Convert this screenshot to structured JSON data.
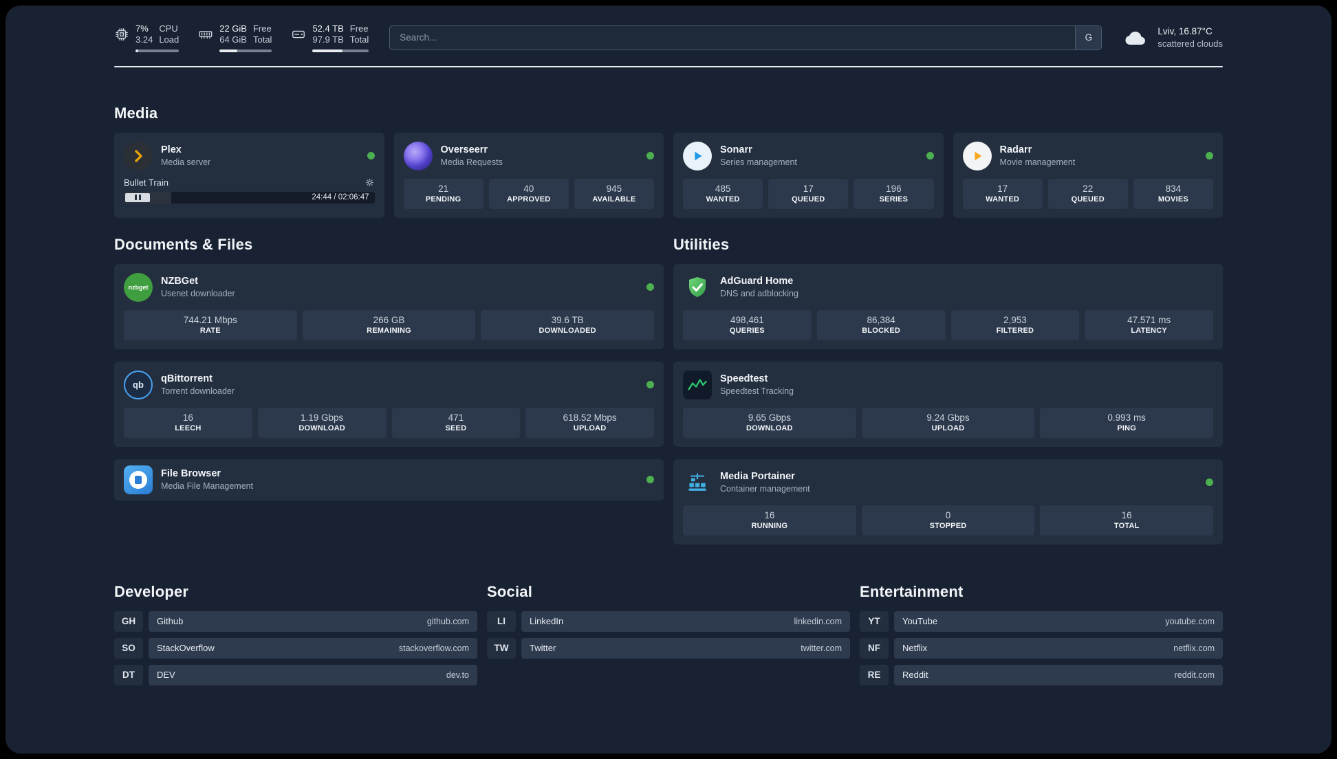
{
  "colors": {
    "status_online": "#4caf50",
    "plex_accent": "#e5a00d",
    "sonarr_accent": "#1e9be6",
    "radarr_accent": "#f6a821",
    "adguard_accent": "#44ad4c",
    "speedtest_accent": "#2ecc71",
    "portainer_accent": "#41b0e5"
  },
  "icons": [
    "cpu-chip",
    "ram-module",
    "disk-drive",
    "search-engine-g",
    "weather-cloud",
    "gear",
    "pause",
    "status-dot"
  ],
  "topbar": {
    "cpu": {
      "value": "7%",
      "sub": "3.24",
      "label_top": "CPU",
      "label_bottom": "Load",
      "bar_width": "7%"
    },
    "ram": {
      "value": "22 GiB",
      "sub": "64 GiB",
      "label_top": "Free",
      "label_bottom": "Total",
      "bar_width": "34%"
    },
    "disk": {
      "value": "52.4 TB",
      "sub": "97.9 TB",
      "label_top": "Free",
      "label_bottom": "Total",
      "bar_width": "53%"
    },
    "search": {
      "placeholder": "Search...",
      "button_label": "G"
    },
    "weather": {
      "location": "Lviv, 16.87°C",
      "condition": "scattered clouds"
    }
  },
  "media": {
    "title": "Media",
    "cards": {
      "plex": {
        "name": "Plex",
        "subtitle": "Media server",
        "player": {
          "track_title": "Bullet Train",
          "time": "24:44 / 02:06:47",
          "progress": "19%"
        }
      },
      "overseerr": {
        "name": "Overseerr",
        "subtitle": "Media Requests",
        "stats": [
          {
            "value": "21",
            "label": "PENDING"
          },
          {
            "value": "40",
            "label": "APPROVED"
          },
          {
            "value": "945",
            "label": "AVAILABLE"
          }
        ]
      },
      "sonarr": {
        "name": "Sonarr",
        "subtitle": "Series management",
        "stats": [
          {
            "value": "485",
            "label": "WANTED"
          },
          {
            "value": "17",
            "label": "QUEUED"
          },
          {
            "value": "196",
            "label": "SERIES"
          }
        ]
      },
      "radarr": {
        "name": "Radarr",
        "subtitle": "Movie management",
        "stats": [
          {
            "value": "17",
            "label": "WANTED"
          },
          {
            "value": "22",
            "label": "QUEUED"
          },
          {
            "value": "834",
            "label": "MOVIES"
          }
        ]
      }
    }
  },
  "documents": {
    "title": "Documents & Files",
    "nzbget": {
      "name": "NZBGet",
      "subtitle": "Usenet downloader",
      "icon_text": "nzbget",
      "stats": [
        {
          "value": "744.21 Mbps",
          "label": "RATE"
        },
        {
          "value": "266 GB",
          "label": "REMAINING"
        },
        {
          "value": "39.6 TB",
          "label": "DOWNLOADED"
        }
      ]
    },
    "qbittorrent": {
      "name": "qBittorrent",
      "subtitle": "Torrent downloader",
      "icon_text": "qb",
      "stats": [
        {
          "value": "16",
          "label": "LEECH"
        },
        {
          "value": "1.19 Gbps",
          "label": "DOWNLOAD"
        },
        {
          "value": "471",
          "label": "SEED"
        },
        {
          "value": "618.52 Mbps",
          "label": "UPLOAD"
        }
      ]
    },
    "filebrowser": {
      "name": "File Browser",
      "subtitle": "Media File Management"
    }
  },
  "utilities": {
    "title": "Utilities",
    "adguard": {
      "name": "AdGuard Home",
      "subtitle": "DNS and adblocking",
      "stats": [
        {
          "value": "498,461",
          "label": "QUERIES"
        },
        {
          "value": "86,384",
          "label": "BLOCKED"
        },
        {
          "value": "2,953",
          "label": "FILTERED"
        },
        {
          "value": "47.571 ms",
          "label": "LATENCY"
        }
      ]
    },
    "speedtest": {
      "name": "Speedtest",
      "subtitle": "Speedtest Tracking",
      "stats": [
        {
          "value": "9.65 Gbps",
          "label": "DOWNLOAD"
        },
        {
          "value": "9.24 Gbps",
          "label": "UPLOAD"
        },
        {
          "value": "0.993 ms",
          "label": "PING"
        }
      ]
    },
    "portainer": {
      "name": "Media Portainer",
      "subtitle": "Container management",
      "stats": [
        {
          "value": "16",
          "label": "RUNNING"
        },
        {
          "value": "0",
          "label": "STOPPED"
        },
        {
          "value": "16",
          "label": "TOTAL"
        }
      ]
    }
  },
  "links": {
    "developer": {
      "title": "Developer",
      "items": [
        {
          "abbr": "GH",
          "name": "Github",
          "url": "github.com"
        },
        {
          "abbr": "SO",
          "name": "StackOverflow",
          "url": "stackoverflow.com"
        },
        {
          "abbr": "DT",
          "name": "DEV",
          "url": "dev.to"
        }
      ]
    },
    "social": {
      "title": "Social",
      "items": [
        {
          "abbr": "LI",
          "name": "LinkedIn",
          "url": "linkedin.com"
        },
        {
          "abbr": "TW",
          "name": "Twitter",
          "url": "twitter.com"
        }
      ]
    },
    "entertainment": {
      "title": "Entertainment",
      "items": [
        {
          "abbr": "YT",
          "name": "YouTube",
          "url": "youtube.com"
        },
        {
          "abbr": "NF",
          "name": "Netflix",
          "url": "netflix.com"
        },
        {
          "abbr": "RE",
          "name": "Reddit",
          "url": "reddit.com"
        }
      ]
    }
  }
}
